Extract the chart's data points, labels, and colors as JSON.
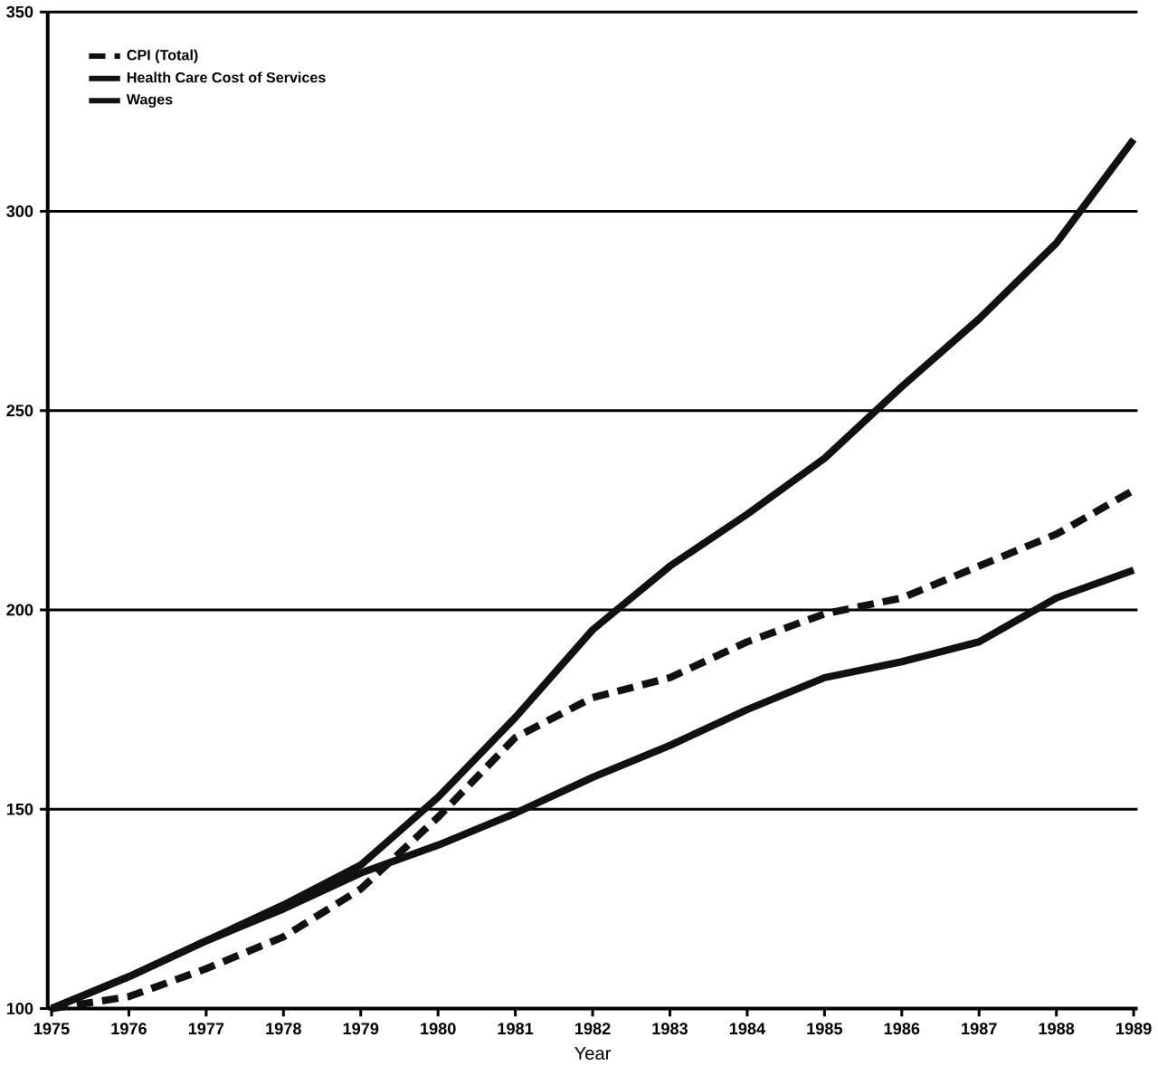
{
  "chart_data": {
    "type": "line",
    "xlabel": "Year",
    "categories": [
      "1975",
      "1976",
      "1977",
      "1978",
      "1979",
      "1980",
      "1981",
      "1982",
      "1983",
      "1984",
      "1985",
      "1986",
      "1987",
      "1988",
      "1989"
    ],
    "series": [
      {
        "name": "CPI (Total)",
        "color": "#111111",
        "line_style": "dashed",
        "values": [
          100,
          103,
          110,
          118,
          130,
          148,
          168,
          178,
          183,
          192,
          199,
          203,
          211,
          219,
          230
        ]
      },
      {
        "name": "Health Care Cost of Services",
        "color": "#111111",
        "line_style": "solid",
        "values": [
          100,
          108,
          117,
          126,
          136,
          153,
          173,
          195,
          211,
          224,
          238,
          256,
          273,
          292,
          318
        ]
      },
      {
        "name": "Wages",
        "color": "#111111",
        "line_style": "solid",
        "values": [
          100,
          108,
          117,
          125,
          134,
          141,
          149,
          158,
          166,
          175,
          183,
          187,
          192,
          203,
          210
        ]
      }
    ],
    "ylim": [
      100,
      350
    ],
    "yticks": [
      100,
      150,
      200,
      250,
      300,
      350
    ],
    "grid": "y",
    "legend": "top left",
    "marker": "none"
  }
}
